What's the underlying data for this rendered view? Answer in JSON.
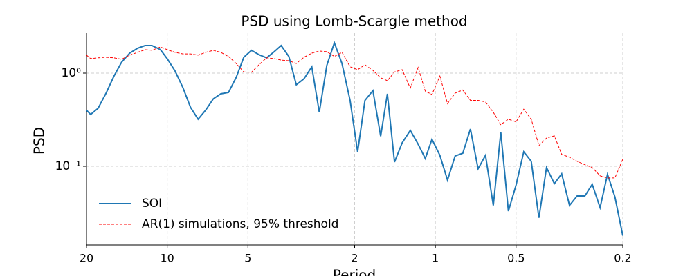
{
  "chart_data": {
    "type": "line",
    "title": "PSD using Lomb-Scargle method",
    "x_label": "Period",
    "y_label": "PSD",
    "xscale": "log",
    "yscale": "log",
    "grid": true,
    "legend": "lower left",
    "xlim": [
      20,
      0.2
    ],
    "xticks": [
      20,
      10,
      5,
      2,
      1,
      0.5,
      0.2
    ],
    "ylim": [
      0.0143,
      2.69
    ],
    "yticks": [
      {
        "value": 1,
        "label": "10⁰"
      },
      {
        "value": 0.1,
        "label": "10⁻¹"
      }
    ],
    "x": [
      20,
      19.3,
      18.1,
      16.9,
      15.8,
      14.8,
      13.8,
      12.9,
      12.1,
      11.4,
      10.6,
      10.0,
      9.34,
      8.74,
      8.19,
      7.67,
      7.19,
      6.73,
      6.31,
      5.91,
      5.53,
      5.18,
      4.85,
      4.55,
      4.26,
      3.99,
      3.76,
      3.52,
      3.3,
      3.09,
      2.89,
      2.71,
      2.54,
      2.38,
      2.23,
      2.08,
      1.95,
      1.83,
      1.71,
      1.6,
      1.51,
      1.42,
      1.33,
      1.24,
      1.16,
      1.09,
      1.03,
      0.962,
      0.901,
      0.844,
      0.79,
      0.74,
      0.693,
      0.65,
      0.608,
      0.57,
      0.534,
      0.5,
      0.468,
      0.439,
      0.411,
      0.385,
      0.36,
      0.338,
      0.316,
      0.296,
      0.277,
      0.26,
      0.243,
      0.228,
      0.214,
      0.2
    ],
    "series": [
      {
        "name": "SOI",
        "color": "#1f77b4",
        "dashed": false,
        "values": [
          0.4,
          0.36,
          0.42,
          0.61,
          0.93,
          1.31,
          1.64,
          1.85,
          1.98,
          1.98,
          1.79,
          1.43,
          1.05,
          0.7,
          0.43,
          0.32,
          0.4,
          0.53,
          0.6,
          0.62,
          0.9,
          1.48,
          1.76,
          1.58,
          1.46,
          1.7,
          1.98,
          1.51,
          0.75,
          0.87,
          1.17,
          0.38,
          1.21,
          2.12,
          1.27,
          0.51,
          0.143,
          0.51,
          0.65,
          0.21,
          0.6,
          0.111,
          0.179,
          0.243,
          0.173,
          0.121,
          0.195,
          0.131,
          0.071,
          0.129,
          0.138,
          0.251,
          0.094,
          0.131,
          0.038,
          0.231,
          0.033,
          0.063,
          0.143,
          0.113,
          0.028,
          0.097,
          0.065,
          0.083,
          0.038,
          0.048,
          0.048,
          0.064,
          0.036,
          0.082,
          0.047,
          0.018
        ]
      },
      {
        "name": "AR(1) simulations, 95% threshold",
        "color": "#ff0000",
        "dashed": true,
        "values": [
          1.56,
          1.43,
          1.46,
          1.48,
          1.46,
          1.41,
          1.56,
          1.67,
          1.79,
          1.76,
          1.91,
          1.79,
          1.67,
          1.61,
          1.61,
          1.56,
          1.67,
          1.76,
          1.67,
          1.51,
          1.27,
          1.03,
          1.02,
          1.23,
          1.46,
          1.43,
          1.38,
          1.36,
          1.27,
          1.48,
          1.64,
          1.73,
          1.7,
          1.51,
          1.67,
          1.17,
          1.09,
          1.23,
          1.07,
          0.89,
          0.83,
          1.03,
          1.09,
          0.69,
          1.15,
          0.64,
          0.59,
          0.93,
          0.47,
          0.61,
          0.66,
          0.51,
          0.51,
          0.49,
          0.38,
          0.28,
          0.32,
          0.3,
          0.41,
          0.32,
          0.167,
          0.201,
          0.212,
          0.134,
          0.125,
          0.113,
          0.104,
          0.097,
          0.079,
          0.075,
          0.075,
          0.119
        ]
      }
    ]
  }
}
